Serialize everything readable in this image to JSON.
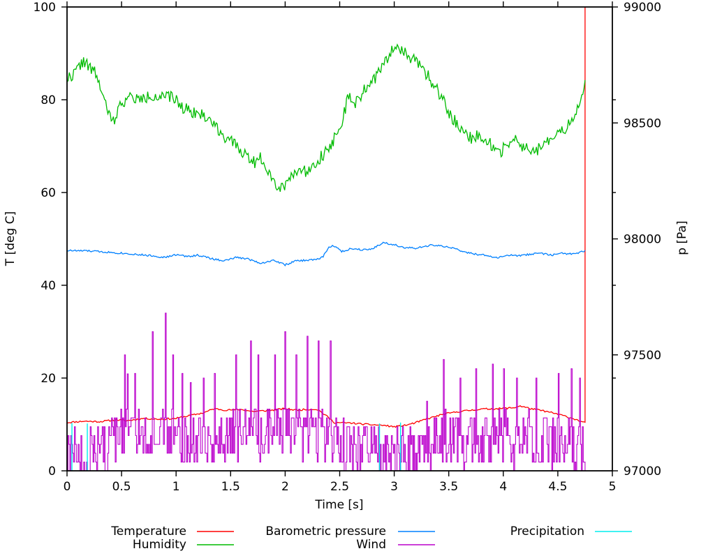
{
  "figure": {
    "background": "#ffffff",
    "axes": {
      "x": {
        "label": "Time [s]",
        "min": 0,
        "max": 5,
        "ticks": [
          0,
          0.5,
          1,
          1.5,
          2,
          2.5,
          3,
          3.5,
          4,
          4.5,
          5
        ],
        "tick_labels": [
          "0",
          "0.5",
          "1",
          "1.5",
          "2",
          "2.5",
          "3",
          "3.5",
          "4",
          "4.5",
          "5"
        ]
      },
      "y_left": {
        "label": "T [deg C]",
        "min": 0,
        "max": 100,
        "ticks": [
          0,
          20,
          40,
          60,
          80,
          100
        ],
        "tick_labels": [
          "0",
          "20",
          "40",
          "60",
          "80",
          "100"
        ]
      },
      "y_right": {
        "label": "p [Pa]",
        "min": 97000,
        "max": 99000,
        "ticks": [
          97000,
          97500,
          98000,
          98500,
          99000
        ],
        "tick_labels": [
          "97000",
          "97500",
          "98000",
          "98500",
          "99000"
        ],
        "mirror_ticks_left_units": [
          20,
          40,
          60,
          80
        ]
      }
    },
    "legend": [
      {
        "label": "Temperature",
        "color": "#ff0000"
      },
      {
        "label": "Humidity",
        "color": "#00bb00"
      },
      {
        "label": "Barometric pressure",
        "color": "#0080ff"
      },
      {
        "label": "Wind",
        "color": "#bb00cc"
      },
      {
        "label": "Precipitation",
        "color": "#00eeee"
      }
    ]
  },
  "chart_data": {
    "type": "line",
    "title": "",
    "xlabel": "Time [s]",
    "ylabel_left": "T [deg C]",
    "ylabel_right": "p [Pa]",
    "x_range": [
      0,
      5
    ],
    "y_left_range": [
      0,
      100
    ],
    "y_right_range": [
      97000,
      99000
    ],
    "grid": false,
    "legend_position": "below",
    "data_end_time": 4.75,
    "series": [
      {
        "name": "Temperature",
        "color": "#ff0000",
        "axis": "left",
        "style": "line",
        "unit": "deg C",
        "samples": 400,
        "noise": 0.18,
        "seed": 11,
        "end_line": 100,
        "waypoints": [
          [
            0,
            10.4
          ],
          [
            0.15,
            10.7
          ],
          [
            0.3,
            10.6
          ],
          [
            0.45,
            11.0
          ],
          [
            0.55,
            10.8
          ],
          [
            0.7,
            11.3
          ],
          [
            0.85,
            11.1
          ],
          [
            1.0,
            11.3
          ],
          [
            1.1,
            11.8
          ],
          [
            1.25,
            12.5
          ],
          [
            1.35,
            13.4
          ],
          [
            1.45,
            13.1
          ],
          [
            1.6,
            13.2
          ],
          [
            1.7,
            12.8
          ],
          [
            1.85,
            13.0
          ],
          [
            2.0,
            13.4
          ],
          [
            2.1,
            13.1
          ],
          [
            2.25,
            13.3
          ],
          [
            2.3,
            13.2
          ],
          [
            2.38,
            11.8
          ],
          [
            2.45,
            10.4
          ],
          [
            2.6,
            10.3
          ],
          [
            2.75,
            10.0
          ],
          [
            2.9,
            9.8
          ],
          [
            3.0,
            9.5
          ],
          [
            3.1,
            9.8
          ],
          [
            3.2,
            10.4
          ],
          [
            3.3,
            11.2
          ],
          [
            3.45,
            12.2
          ],
          [
            3.6,
            12.8
          ],
          [
            3.8,
            13.3
          ],
          [
            3.95,
            13.4
          ],
          [
            4.1,
            13.6
          ],
          [
            4.15,
            14.0
          ],
          [
            4.25,
            13.4
          ],
          [
            4.35,
            13.0
          ],
          [
            4.45,
            12.5
          ],
          [
            4.55,
            11.9
          ],
          [
            4.65,
            11.2
          ],
          [
            4.75,
            10.3
          ]
        ]
      },
      {
        "name": "Humidity",
        "color": "#00bb00",
        "axis": "left",
        "style": "line",
        "unit": "%",
        "samples": 470,
        "noise": 1.3,
        "seed": 22,
        "waypoints": [
          [
            0,
            84.5
          ],
          [
            0.08,
            86
          ],
          [
            0.15,
            88.5
          ],
          [
            0.2,
            87
          ],
          [
            0.27,
            85.5
          ],
          [
            0.35,
            79
          ],
          [
            0.42,
            75
          ],
          [
            0.5,
            79.5
          ],
          [
            0.58,
            80.5
          ],
          [
            0.68,
            80
          ],
          [
            0.78,
            81
          ],
          [
            0.88,
            80.5
          ],
          [
            0.98,
            80.5
          ],
          [
            1.05,
            78.5
          ],
          [
            1.15,
            77.5
          ],
          [
            1.3,
            76
          ],
          [
            1.45,
            72
          ],
          [
            1.6,
            69
          ],
          [
            1.72,
            66.5
          ],
          [
            1.78,
            67.5
          ],
          [
            1.88,
            63.5
          ],
          [
            1.95,
            60.5
          ],
          [
            2.02,
            62.5
          ],
          [
            2.1,
            65
          ],
          [
            2.18,
            64.5
          ],
          [
            2.3,
            67
          ],
          [
            2.42,
            70
          ],
          [
            2.52,
            75.5
          ],
          [
            2.58,
            80.5
          ],
          [
            2.64,
            79
          ],
          [
            2.72,
            82
          ],
          [
            2.82,
            84.5
          ],
          [
            2.92,
            88
          ],
          [
            3.0,
            92
          ],
          [
            3.08,
            90.5
          ],
          [
            3.18,
            88.5
          ],
          [
            3.3,
            85.5
          ],
          [
            3.42,
            81
          ],
          [
            3.52,
            76.5
          ],
          [
            3.62,
            73.5
          ],
          [
            3.72,
            71.5
          ],
          [
            3.78,
            72.5
          ],
          [
            3.88,
            70.5
          ],
          [
            3.96,
            68.5
          ],
          [
            4.05,
            70.5
          ],
          [
            4.1,
            71.5
          ],
          [
            4.2,
            69.5
          ],
          [
            4.28,
            68.5
          ],
          [
            4.38,
            70.5
          ],
          [
            4.48,
            72
          ],
          [
            4.58,
            74
          ],
          [
            4.66,
            77
          ],
          [
            4.72,
            80
          ],
          [
            4.75,
            84
          ]
        ]
      },
      {
        "name": "Barometric pressure",
        "color": "#0080ff",
        "axis": "right",
        "style": "line",
        "unit": "Pa",
        "samples": 450,
        "noise": 4,
        "seed": 33,
        "waypoints": [
          [
            0,
            97950
          ],
          [
            0.2,
            97948
          ],
          [
            0.4,
            97942
          ],
          [
            0.6,
            97935
          ],
          [
            0.8,
            97926
          ],
          [
            0.9,
            97920
          ],
          [
            1.0,
            97932
          ],
          [
            1.1,
            97924
          ],
          [
            1.2,
            97930
          ],
          [
            1.35,
            97912
          ],
          [
            1.45,
            97906
          ],
          [
            1.55,
            97920
          ],
          [
            1.65,
            97915
          ],
          [
            1.78,
            97895
          ],
          [
            1.9,
            97908
          ],
          [
            2.0,
            97888
          ],
          [
            2.1,
            97905
          ],
          [
            2.2,
            97908
          ],
          [
            2.3,
            97912
          ],
          [
            2.35,
            97925
          ],
          [
            2.4,
            97965
          ],
          [
            2.45,
            97970
          ],
          [
            2.52,
            97945
          ],
          [
            2.6,
            97958
          ],
          [
            2.7,
            97954
          ],
          [
            2.8,
            97958
          ],
          [
            2.9,
            97984
          ],
          [
            3.0,
            97975
          ],
          [
            3.1,
            97962
          ],
          [
            3.2,
            97959
          ],
          [
            3.35,
            97974
          ],
          [
            3.45,
            97967
          ],
          [
            3.55,
            97960
          ],
          [
            3.65,
            97942
          ],
          [
            3.75,
            97934
          ],
          [
            3.85,
            97928
          ],
          [
            3.95,
            97918
          ],
          [
            4.05,
            97930
          ],
          [
            4.15,
            97927
          ],
          [
            4.25,
            97934
          ],
          [
            4.35,
            97938
          ],
          [
            4.45,
            97930
          ],
          [
            4.55,
            97938
          ],
          [
            4.65,
            97934
          ],
          [
            4.75,
            97948
          ]
        ]
      },
      {
        "name": "Wind",
        "color": "#bb00cc",
        "axis": "left",
        "style": "step",
        "unit": "",
        "samples": 560,
        "noise": 6,
        "seed": 44,
        "quantize": 1.9,
        "clamp_min": 0,
        "spike_prob": 0.05,
        "spike_extra": 10,
        "waypoints": [
          [
            0,
            3
          ],
          [
            0.3,
            4
          ],
          [
            0.5,
            7
          ],
          [
            0.7,
            8
          ],
          [
            0.9,
            8
          ],
          [
            1.1,
            7
          ],
          [
            1.3,
            7
          ],
          [
            1.5,
            8
          ],
          [
            1.7,
            8
          ],
          [
            1.9,
            8
          ],
          [
            2.1,
            8
          ],
          [
            2.3,
            8
          ],
          [
            2.45,
            6
          ],
          [
            2.6,
            5
          ],
          [
            2.75,
            5
          ],
          [
            2.9,
            3
          ],
          [
            3.05,
            3
          ],
          [
            3.2,
            4
          ],
          [
            3.35,
            6
          ],
          [
            3.5,
            7
          ],
          [
            3.65,
            6
          ],
          [
            3.8,
            7
          ],
          [
            3.95,
            7
          ],
          [
            4.1,
            6
          ],
          [
            4.25,
            6
          ],
          [
            4.4,
            6
          ],
          [
            4.55,
            6
          ],
          [
            4.7,
            5
          ],
          [
            4.75,
            4
          ]
        ],
        "spikes": [
          [
            0.53,
            25
          ],
          [
            0.62,
            21
          ],
          [
            0.78,
            30
          ],
          [
            0.9,
            34
          ],
          [
            0.97,
            25
          ],
          [
            1.05,
            21
          ],
          [
            1.25,
            20
          ],
          [
            1.35,
            21
          ],
          [
            1.55,
            25
          ],
          [
            1.68,
            28
          ],
          [
            1.75,
            25
          ],
          [
            1.9,
            25
          ],
          [
            2.0,
            30
          ],
          [
            2.1,
            25
          ],
          [
            2.2,
            29
          ],
          [
            2.3,
            28
          ],
          [
            2.41,
            28
          ],
          [
            3.3,
            15
          ],
          [
            3.45,
            24
          ],
          [
            3.6,
            20
          ],
          [
            3.75,
            22
          ],
          [
            3.9,
            23
          ],
          [
            4.0,
            22
          ],
          [
            4.12,
            20
          ],
          [
            4.3,
            20
          ],
          [
            4.5,
            21
          ],
          [
            4.62,
            22
          ],
          [
            4.7,
            20
          ]
        ]
      },
      {
        "name": "Precipitation",
        "color": "#00eeee",
        "axis": "left",
        "style": "impulse",
        "unit": "",
        "points": [
          [
            0.045,
            10.3
          ],
          [
            0.186,
            10.2
          ],
          [
            2.865,
            10.2
          ],
          [
            3.058,
            10.4
          ]
        ]
      }
    ]
  }
}
